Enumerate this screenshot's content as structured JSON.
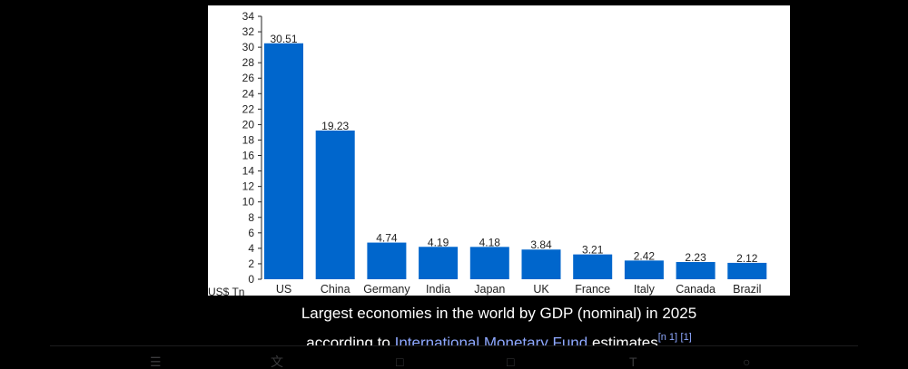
{
  "chart_data": {
    "type": "bar",
    "categories": [
      "US",
      "China",
      "Germany",
      "India",
      "Japan",
      "UK",
      "France",
      "Italy",
      "Canada",
      "Brazil"
    ],
    "values": [
      30.51,
      19.23,
      4.74,
      4.19,
      4.18,
      3.84,
      3.21,
      2.42,
      2.23,
      2.12
    ],
    "value_labels": [
      "30.51",
      "19.23",
      "4.74",
      "4.19",
      "4.18",
      "3.84",
      "3.21",
      "2.42",
      "2.23",
      "2.12"
    ],
    "y_ticks": [
      0,
      2,
      4,
      6,
      8,
      10,
      12,
      14,
      16,
      18,
      20,
      22,
      24,
      26,
      28,
      30,
      32,
      34
    ],
    "ylim": [
      0,
      34
    ],
    "ylabel": "US$ Tn",
    "bar_color": "#0066cc",
    "grid": false
  },
  "caption": {
    "line1": "Largest economies in the world by GDP (nominal) in 2025",
    "prefix": "according to",
    "link": "International Monetary Fund",
    "suffix": "estimates",
    "ref1": "[n 1]",
    "ref2": "[1]"
  },
  "colors": {
    "background": "#000000",
    "link": "#8ea8ff"
  }
}
